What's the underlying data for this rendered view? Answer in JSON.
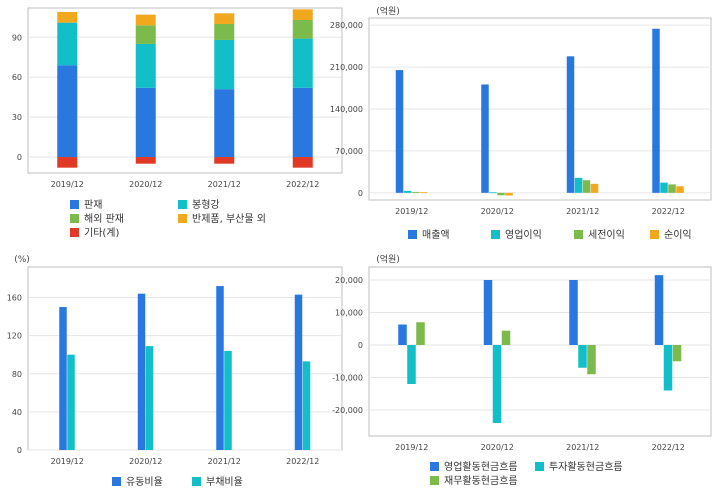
{
  "colors": {
    "blue": "#2878e0",
    "cyan": "#12bfc9",
    "green": "#7cba4c",
    "orange": "#f2a81d",
    "red": "#e03a26",
    "frame": "#bfbfbf",
    "grid": "#e6e6e6"
  },
  "chart_data": [
    {
      "type": "bar",
      "stacked": true,
      "categories": [
        "2019/12",
        "2020/12",
        "2021/12",
        "2022/12"
      ],
      "series": [
        {
          "name": "판재",
          "values": [
            69,
            52,
            51,
            52
          ]
        },
        {
          "name": "봉형강",
          "values": [
            32,
            33,
            37,
            37
          ]
        },
        {
          "name": "해외 판재",
          "values": [
            0,
            14,
            12,
            14
          ]
        },
        {
          "name": "반제품, 부산물 외",
          "values": [
            8,
            8,
            8,
            8
          ]
        },
        {
          "name": "기타(계)",
          "values": [
            -8,
            -5,
            -5,
            -8
          ]
        }
      ],
      "ylim": [
        -12,
        112
      ],
      "yticks": [
        0,
        30,
        60,
        90
      ],
      "ytick_labels": [
        "0",
        "30",
        "60",
        "90"
      ],
      "grid": true,
      "legend": "bottom"
    },
    {
      "type": "bar",
      "unit_label": "(억원)",
      "categories": [
        "2019/12",
        "2020/12",
        "2021/12",
        "2022/12"
      ],
      "series": [
        {
          "name": "매출액",
          "values": [
            205000,
            181000,
            228000,
            274000
          ]
        },
        {
          "name": "영업이익",
          "values": [
            3300,
            800,
            25000,
            17000
          ]
        },
        {
          "name": "세전이익",
          "values": [
            1500,
            -4000,
            21000,
            14000
          ]
        },
        {
          "name": "순이익",
          "values": [
            1000,
            -4500,
            15000,
            11000
          ]
        }
      ],
      "ylim": [
        -12000,
        292000
      ],
      "yticks": [
        0,
        70000,
        140000,
        210000,
        280000
      ],
      "ytick_labels": [
        "0",
        "70,000",
        "140,000",
        "210,000",
        "280,000"
      ],
      "grid": true,
      "legend": "bottom"
    },
    {
      "type": "bar",
      "unit_label": "(%)",
      "categories": [
        "2019/12",
        "2020/12",
        "2021/12",
        "2022/12"
      ],
      "series": [
        {
          "name": "유동비율",
          "values": [
            150,
            164,
            172,
            163
          ]
        },
        {
          "name": "부채비율",
          "values": [
            100,
            109,
            104,
            93
          ]
        }
      ],
      "ylim": [
        0,
        192
      ],
      "yticks": [
        0,
        40,
        80,
        120,
        160
      ],
      "ytick_labels": [
        "0",
        "40",
        "80",
        "120",
        "160"
      ],
      "grid": true,
      "legend": "bottom"
    },
    {
      "type": "bar",
      "unit_label": "(억원)",
      "categories": [
        "2019/12",
        "2020/12",
        "2021/12",
        "2022/12"
      ],
      "series": [
        {
          "name": "영업활동현금흐름",
          "values": [
            6300,
            20000,
            20000,
            21500
          ]
        },
        {
          "name": "투자활동현금흐름",
          "values": [
            -12000,
            -24000,
            -7000,
            -14000
          ]
        },
        {
          "name": "재무활동현금흐름",
          "values": [
            7000,
            4400,
            -9000,
            -5000
          ]
        }
      ],
      "ylim": [
        -28000,
        24000
      ],
      "yticks": [
        -20000,
        -10000,
        0,
        10000,
        20000
      ],
      "ytick_labels": [
        "-20,000",
        "-10,000",
        "0",
        "10,000",
        "20,000"
      ],
      "grid": true,
      "legend": "bottom"
    }
  ]
}
